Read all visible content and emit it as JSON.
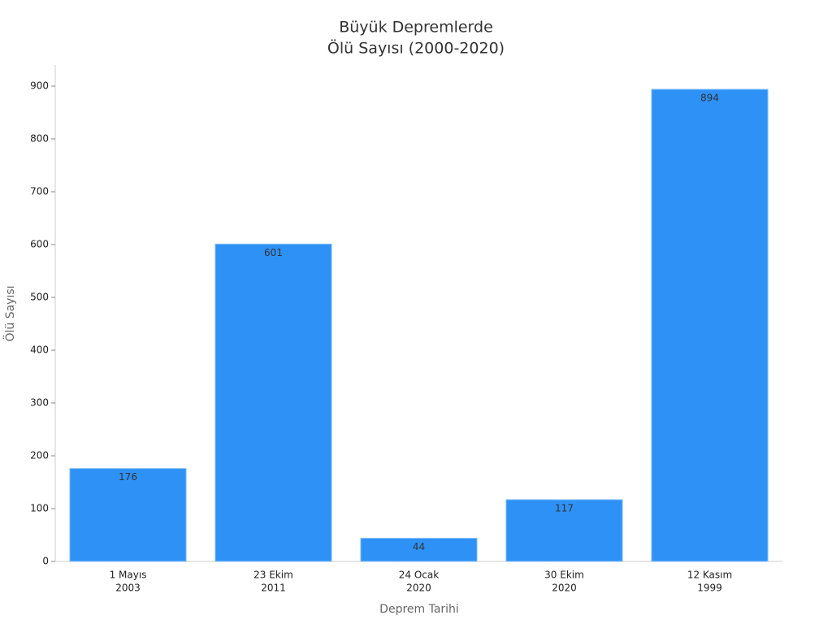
{
  "chart_data": {
    "type": "bar",
    "title": [
      "Büyük Depremlerde",
      "Ölü Sayısı (2000-2020)"
    ],
    "x_label": "Deprem Tarihi",
    "y_label": "Ölü Sayısı",
    "categories": [
      [
        "1 Mayıs",
        "2003"
      ],
      [
        "23 Ekim",
        "2011"
      ],
      [
        "24 Ocak",
        "2020"
      ],
      [
        "30 Ekim",
        "2020"
      ],
      [
        "12 Kasım",
        "1999"
      ]
    ],
    "values": [
      176,
      601,
      44,
      117,
      894
    ],
    "color": "#2d91f5",
    "ylim": [
      0,
      940
    ],
    "yticks": [
      0,
      100,
      200,
      300,
      400,
      500,
      600,
      700,
      800,
      900
    ],
    "grid": false
  }
}
